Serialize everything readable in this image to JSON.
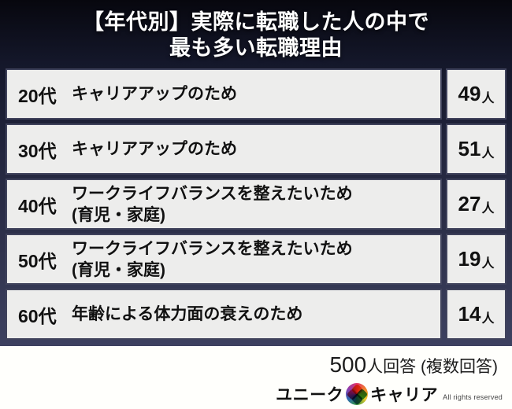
{
  "header": {
    "title_line1": "【年代別】実際に転職した人の中で",
    "title_line2": "最も多い転職理由"
  },
  "table": {
    "rows": [
      {
        "age": "20代",
        "reason_line1": "キャリアアップのため",
        "reason_line2": "",
        "count": "49",
        "unit": "人"
      },
      {
        "age": "30代",
        "reason_line1": "キャリアアップのため",
        "reason_line2": "",
        "count": "51",
        "unit": "人"
      },
      {
        "age": "40代",
        "reason_line1": "ワークライフバランスを整えたいため",
        "reason_line2": "(育児・家庭)",
        "count": "27",
        "unit": "人"
      },
      {
        "age": "50代",
        "reason_line1": "ワークライフバランスを整えたいため",
        "reason_line2": "(育児・家庭)",
        "count": "19",
        "unit": "人"
      },
      {
        "age": "60代",
        "reason_line1": "年齢による体力面の衰えのため",
        "reason_line2": "",
        "count": "14",
        "unit": "人"
      }
    ]
  },
  "footer": {
    "respondents_num": "500",
    "respondents_rest": "人回答 (複数回答)"
  },
  "logo": {
    "brand_left": "ユニーク",
    "brand_right": "キャリア",
    "rights": "All rights reserved"
  },
  "colors": {
    "background_dark_top": "#07070e",
    "background_dark_bottom": "#3d4160",
    "cell_background": "#ededec",
    "cell_border": "#40435c",
    "header_text": "#ffffff",
    "body_text": "#111111",
    "logo_pink": "#e2346b",
    "logo_orange": "#f08428",
    "logo_green": "#35973d",
    "logo_blue": "#2e69b3"
  }
}
